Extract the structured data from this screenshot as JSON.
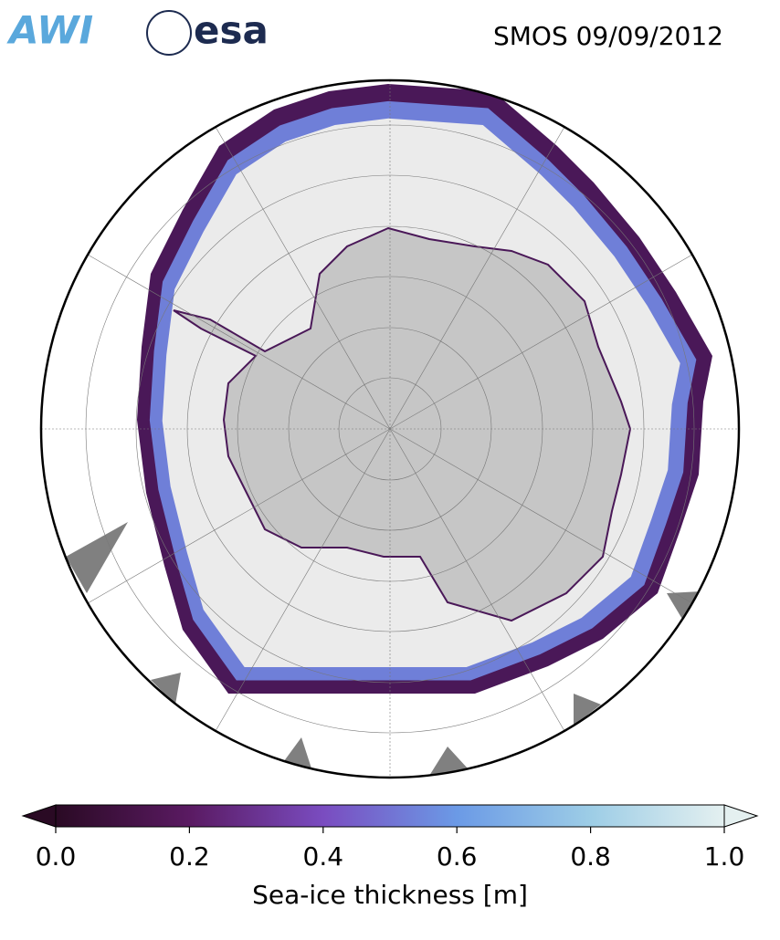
{
  "header": {
    "logos": [
      "AWI",
      "esa"
    ],
    "title": "SMOS 09/09/2012"
  },
  "colorbar": {
    "label": "Sea-ice thickness [m]",
    "lim": [
      0,
      1
    ],
    "ticks": [
      {
        "value": 0,
        "label": "0.0"
      },
      {
        "value": 0.2,
        "label": "0.2"
      },
      {
        "value": 0.4,
        "label": "0.4"
      },
      {
        "value": 0.6,
        "label": "0.6"
      },
      {
        "value": 0.8,
        "label": "0.8"
      },
      {
        "value": 1,
        "label": "1.0"
      }
    ]
  }
}
